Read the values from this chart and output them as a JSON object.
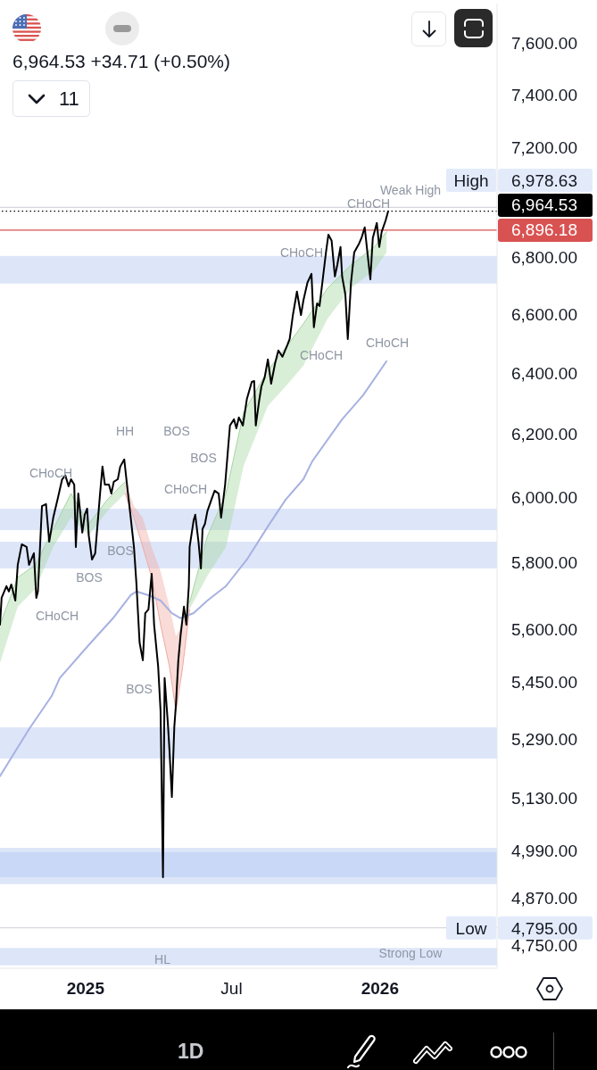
{
  "chart_data": {
    "type": "line",
    "subtitle": "6,964.53 +34.71 (+0.50%)",
    "log": true,
    "xlim": [
      "2024-09-17",
      "2026-05-26"
    ],
    "xticks": [
      {
        "value": "2025-01-01",
        "label": "2025"
      },
      {
        "value": "2025-07-01",
        "label": "Jul"
      },
      {
        "value": "2026-01-01",
        "label": "2026"
      }
    ],
    "ylim": [
      4695,
      7760
    ],
    "yticks": [
      {
        "value": 7600,
        "label": "7,600.00"
      },
      {
        "value": 7400,
        "label": "7,400.00"
      },
      {
        "value": 7200,
        "label": "7,200.00"
      },
      {
        "value": 6800,
        "label": "6,800.00"
      },
      {
        "value": 6600,
        "label": "6,600.00"
      },
      {
        "value": 6400,
        "label": "6,400.00"
      },
      {
        "value": 6200,
        "label": "6,200.00"
      },
      {
        "value": 6000,
        "label": "6,000.00"
      },
      {
        "value": 5800,
        "label": "5,800.00"
      },
      {
        "value": 5600,
        "label": "5,600.00"
      },
      {
        "value": 5450,
        "label": "5,450.00"
      },
      {
        "value": 5290,
        "label": "5,290.00"
      },
      {
        "value": 5130,
        "label": "5,130.00"
      },
      {
        "value": 4990,
        "label": "4,990.00"
      },
      {
        "value": 4870,
        "label": "4,870.00"
      },
      {
        "value": 4750,
        "label": "4,750.00"
      }
    ],
    "bands": [
      {
        "axis": "y",
        "from": 6707,
        "to": 6804,
        "color": "#dde6f9"
      },
      {
        "axis": "y",
        "from": 5899,
        "to": 5965,
        "color": "#dde6f9"
      },
      {
        "axis": "y",
        "from": 5782,
        "to": 5863,
        "color": "#dde6f9"
      },
      {
        "axis": "y",
        "from": 5237,
        "to": 5323,
        "color": "#dde6f9"
      },
      {
        "axis": "y",
        "from": 4905,
        "to": 4999,
        "color": "#dde6f9"
      },
      {
        "axis": "y",
        "from": 4923,
        "to": 4988,
        "color": "#c9d8f6"
      },
      {
        "axis": "y",
        "from": 4702,
        "to": 4745,
        "color": "#dde6f9"
      }
    ],
    "ref_lines": [
      {
        "axis": "y",
        "value": 6978.63,
        "label": "High 6,978.63",
        "color": "#d6d8dd"
      },
      {
        "axis": "y",
        "value": 6964.53,
        "label": "6,964.53",
        "color": "#000000",
        "line_style": "dotted"
      },
      {
        "axis": "y",
        "value": 6896.18,
        "label": "6,896.18",
        "color": "#d95252"
      },
      {
        "axis": "y",
        "value": 4795,
        "label": "Low 4,795.00",
        "color": "#d6d8dd"
      }
    ],
    "series": [
      {
        "color": "#a5d6a0",
        "x": [
          "2024-09-17",
          "2024-10-09",
          "2024-10-31",
          "2024-11-22",
          "2024-12-14",
          "2025-01-05",
          "2025-01-28",
          "2025-02-19"
        ],
        "values": [
          5615,
          5755,
          5793,
          5902,
          6012,
          5918,
          5993,
          6049
        ],
        "lower": [
          5504,
          5668,
          5721,
          5847,
          5937,
          5882,
          5957,
          6012
        ],
        "upper": [
          5615,
          5755,
          5793,
          5902,
          6012,
          5918,
          5993,
          6049
        ]
      },
      {
        "color": "#f0aaa2",
        "x": [
          "2025-02-19",
          "2025-03-02",
          "2025-03-13",
          "2025-03-24",
          "2025-04-04",
          "2025-04-15",
          "2025-04-23",
          "2025-05-01",
          "2025-05-10"
        ],
        "values": [
          6012,
          5937,
          5847,
          5755,
          5615,
          5494,
          5368,
          5486,
          5660
        ],
        "lower": [
          6012,
          5937,
          5847,
          5755,
          5615,
          5494,
          5368,
          5486,
          5660
        ],
        "upper": [
          6049,
          5973,
          5937,
          5847,
          5774,
          5668,
          5581,
          5615,
          5680
        ]
      },
      {
        "color": "#a5d6a0",
        "x": [
          "2025-05-10",
          "2025-06-01",
          "2025-06-24",
          "2025-07-16",
          "2025-08-15",
          "2025-09-06",
          "2025-09-28",
          "2025-10-28",
          "2025-11-26",
          "2025-12-25",
          "2026-01-09"
        ],
        "values": [
          5680,
          5880,
          6012,
          6272,
          6411,
          6486,
          6568,
          6691,
          6772,
          6836,
          6890
        ],
        "lower": [
          5660,
          5760,
          5847,
          6100,
          6293,
          6357,
          6426,
          6586,
          6691,
          6754,
          6817
        ],
        "upper": [
          5680,
          5880,
          6012,
          6272,
          6411,
          6486,
          6568,
          6691,
          6772,
          6836,
          6890
        ]
      },
      {
        "color": "#a7b1e2",
        "x": [
          "2024-09-17",
          "2024-10-23",
          "2024-11-20",
          "2024-11-30",
          "2025-01-05",
          "2025-02-04",
          "2025-02-26",
          "2025-03-05",
          "2025-03-20",
          "2025-04-04",
          "2025-04-18",
          "2025-04-29",
          "2025-05-15",
          "2025-06-01",
          "2025-06-24",
          "2025-07-20",
          "2025-08-15",
          "2025-09-06",
          "2025-09-28",
          "2025-10-09",
          "2025-11-15",
          "2025-12-11",
          "2026-01-09"
        ],
        "values": [
          5189,
          5318,
          5410,
          5461,
          5556,
          5634,
          5702,
          5713,
          5702,
          5686,
          5649,
          5634,
          5649,
          5686,
          5729,
          5809,
          5910,
          5993,
          6057,
          6114,
          6249,
          6328,
          6441
        ]
      },
      {
        "color": "#000000",
        "x": [
          "2024-09-17",
          "2024-09-19",
          "2024-09-25",
          "2024-09-28",
          "2024-10-01",
          "2024-10-06",
          "2024-10-09",
          "2024-10-14",
          "2024-10-20",
          "2024-10-23",
          "2024-10-29",
          "2024-11-01",
          "2024-11-03",
          "2024-11-08",
          "2024-11-13",
          "2024-11-17",
          "2024-11-22",
          "2024-11-28",
          "2024-12-03",
          "2024-12-07",
          "2024-12-11",
          "2024-12-14",
          "2024-12-18",
          "2024-12-20",
          "2024-12-23",
          "2024-12-28",
          "2024-12-31",
          "2025-01-03",
          "2025-01-05",
          "2025-01-09",
          "2025-01-13",
          "2025-01-19",
          "2025-01-22",
          "2025-01-25",
          "2025-01-30",
          "2025-02-02",
          "2025-02-05",
          "2025-02-10",
          "2025-02-13",
          "2025-02-18",
          "2025-02-21",
          "2025-02-26",
          "2025-03-02",
          "2025-03-05",
          "2025-03-09",
          "2025-03-13",
          "2025-03-16",
          "2025-03-20",
          "2025-03-24",
          "2025-03-27",
          "2025-04-01",
          "2025-04-04",
          "2025-04-07",
          "2025-04-09",
          "2025-04-13",
          "2025-04-15",
          "2025-04-18",
          "2025-04-21",
          "2025-04-23",
          "2025-04-26",
          "2025-04-29",
          "2025-05-03",
          "2025-05-06",
          "2025-05-09",
          "2025-05-10",
          "2025-05-15",
          "2025-05-17",
          "2025-05-21",
          "2025-05-24",
          "2025-05-26",
          "2025-05-29",
          "2025-06-01",
          "2025-06-06",
          "2025-06-10",
          "2025-06-15",
          "2025-06-18",
          "2025-06-23",
          "2025-06-26",
          "2025-06-29",
          "2025-07-04",
          "2025-07-07",
          "2025-07-10",
          "2025-07-15",
          "2025-07-20",
          "2025-07-26",
          "2025-07-29",
          "2025-07-31",
          "2025-08-04",
          "2025-08-07",
          "2025-08-11",
          "2025-08-15",
          "2025-08-19",
          "2025-08-24",
          "2025-08-28",
          "2025-09-02",
          "2025-09-08",
          "2025-09-11",
          "2025-09-15",
          "2025-09-20",
          "2025-09-25",
          "2025-09-28",
          "2025-10-03",
          "2025-10-08",
          "2025-10-11",
          "2025-10-15",
          "2025-10-18",
          "2025-10-22",
          "2025-10-26",
          "2025-10-29",
          "2025-11-02",
          "2025-11-06",
          "2025-11-09",
          "2025-11-13",
          "2025-11-15",
          "2025-11-19",
          "2025-11-22",
          "2025-11-26",
          "2025-11-30",
          "2025-12-06",
          "2025-12-09",
          "2025-12-13",
          "2025-12-18",
          "2025-12-20",
          "2025-12-23",
          "2025-12-28",
          "2025-12-31",
          "2026-01-03",
          "2026-01-08",
          "2026-01-11"
        ],
        "values": [
          5615,
          5694,
          5729,
          5713,
          5734,
          5686,
          5793,
          5855,
          5847,
          5793,
          5828,
          5694,
          5713,
          5973,
          5979,
          5863,
          5937,
          6001,
          6057,
          6069,
          6035,
          6057,
          6040,
          5847,
          6012,
          5891,
          5946,
          5965,
          5882,
          5809,
          5828,
          6012,
          6097,
          6040,
          6040,
          6012,
          6049,
          6057,
          6097,
          6120,
          6049,
          5937,
          5847,
          5739,
          5563,
          5512,
          5649,
          5660,
          5766,
          5615,
          5494,
          5368,
          4923,
          5461,
          5335,
          5261,
          5133,
          5323,
          5385,
          5512,
          5589,
          5668,
          5615,
          5729,
          5847,
          5929,
          5946,
          5863,
          5782,
          5902,
          5918,
          5957,
          5993,
          6021,
          6012,
          5937,
          6040,
          6134,
          6229,
          6249,
          6220,
          6255,
          6229,
          6316,
          6372,
          6375,
          6229,
          6307,
          6357,
          6387,
          6447,
          6366,
          6435,
          6477,
          6456,
          6495,
          6516,
          6598,
          6679,
          6598,
          6648,
          6710,
          6741,
          6556,
          6638,
          6629,
          6722,
          6817,
          6880,
          6858,
          6732,
          6772,
          6836,
          6732,
          6669,
          6516,
          6710,
          6817,
          6848,
          6868,
          6906,
          6772,
          6722,
          6868,
          6922,
          6836,
          6890,
          6932,
          6964.53
        ]
      }
    ],
    "annotations": [
      "11",
      "1D",
      "HH",
      "BOS",
      "CHoCH",
      "CHoCH",
      "BOS",
      "BOS",
      "BOS",
      "BOS",
      "CHoCH",
      "HL",
      "Weak High",
      "CHoCH",
      "CHoCH",
      "CHoCH",
      "CHoCH",
      "Strong Low"
    ]
  }
}
